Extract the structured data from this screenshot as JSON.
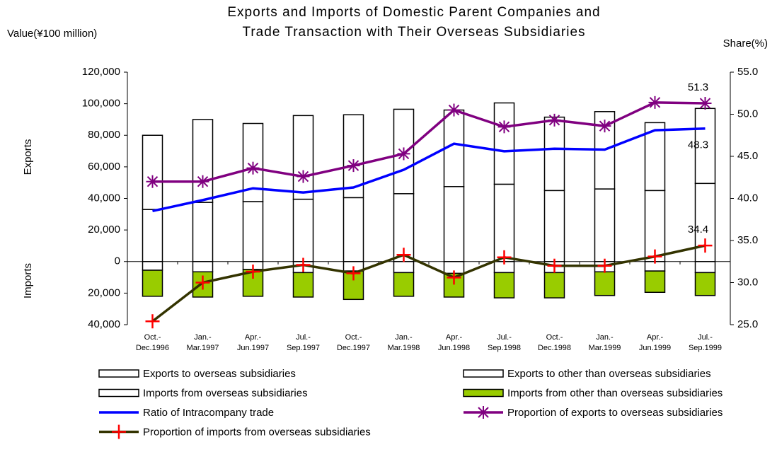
{
  "chart_data": {
    "type": "combo",
    "title": [
      "Exports and Imports of Domestic Parent Companies and",
      "Trade Transaction with Their Overseas Subsidiaries"
    ],
    "y_axis_label": "Value(¥100 million)",
    "y2_axis_label": "Share(%)",
    "y_axis_upper_label": "Exports",
    "y_axis_lower_label": "Imports",
    "categories": [
      [
        "Oct.-",
        "Dec.1996"
      ],
      [
        "Jan.-",
        "Mar.1997"
      ],
      [
        "Apr.-",
        "Jun.1997"
      ],
      [
        "Jul.-",
        "Sep.1997"
      ],
      [
        "Oct.-",
        "Dec.1997"
      ],
      [
        "Jan.-",
        "Mar.1998"
      ],
      [
        "Apr.-",
        "Jun.1998"
      ],
      [
        "Jul.-",
        "Sep.1998"
      ],
      [
        "Oct.-",
        "Dec.1998"
      ],
      [
        "Jan.-",
        "Mar.1999"
      ],
      [
        "Apr.-",
        "Jun.1999"
      ],
      [
        "Jul.-",
        "Sep.1999"
      ]
    ],
    "ylim": [
      -40000,
      120000
    ],
    "yticks": [
      {
        "value": -40000,
        "label": "40,000"
      },
      {
        "value": -20000,
        "label": "20,000"
      },
      0,
      {
        "value": 20000,
        "label": "20,000"
      },
      {
        "value": 40000,
        "label": "40,000"
      },
      {
        "value": 60000,
        "label": "60,000"
      },
      {
        "value": 80000,
        "label": "80,000"
      },
      {
        "value": 100000,
        "label": "100,000"
      },
      {
        "value": 120000,
        "label": "120,000"
      }
    ],
    "y2lim": [
      25,
      55
    ],
    "y2ticks": [
      {
        "value": 25,
        "label": "25.0"
      },
      {
        "value": 30,
        "label": "30.0"
      },
      {
        "value": 35,
        "label": "35.0"
      },
      {
        "value": 40,
        "label": "40.0"
      },
      {
        "value": 45,
        "label": "45.0"
      },
      {
        "value": 50,
        "label": "50.0"
      },
      {
        "value": 55,
        "label": "55.0"
      }
    ],
    "legend": "bottom",
    "data_labels": "last",
    "series": [
      {
        "name": "Exports to overseas subsidiaries",
        "type": "bar",
        "color": "#ffffff",
        "values": [
          33000,
          37500,
          38000,
          39500,
          40500,
          43000,
          47500,
          49000,
          45000,
          46000,
          45000,
          49500
        ]
      },
      {
        "name": "Exports to other than overseas subsidiaries",
        "type": "bar",
        "color": "#ffffff",
        "values": [
          47000,
          52500,
          49500,
          53000,
          52500,
          53500,
          48500,
          51500,
          46500,
          49000,
          43000,
          47500
        ]
      },
      {
        "name": "Imports from overseas subsidiaries",
        "type": "bar",
        "color": "#ffffff",
        "values": [
          -5500,
          -6500,
          -5000,
          -7000,
          -6000,
          -7000,
          -7500,
          -7000,
          -7000,
          -6500,
          -6000,
          -7000
        ]
      },
      {
        "name": "Imports from other than overseas subsidiaries",
        "type": "bar",
        "color": "#99cc00",
        "values": [
          -16500,
          -16000,
          -17000,
          -15500,
          -18000,
          -15000,
          -15000,
          -16000,
          -16000,
          -15000,
          -13500,
          -14500
        ]
      },
      {
        "name": "Ratio of Intracompany trade",
        "type": "line",
        "axis": "y2",
        "color": "#0000ff",
        "values": [
          38.5,
          39.8,
          41.2,
          40.7,
          41.3,
          43.4,
          46.5,
          45.6,
          45.9,
          45.8,
          48.1,
          48.3
        ]
      },
      {
        "name": "Proportion of exports to overseas subsidiaries",
        "type": "line",
        "axis": "y2",
        "color": "#800080",
        "marker": "asterisk",
        "values": [
          42.0,
          42.0,
          43.6,
          42.6,
          43.9,
          45.3,
          50.5,
          48.5,
          49.3,
          48.6,
          51.4,
          51.3
        ]
      },
      {
        "name": "Proportion of imports from overseas subsidiaries",
        "type": "line",
        "axis": "y2",
        "color": "#333300",
        "marker": "plus",
        "marker_color": "#ff0000",
        "values": [
          25.4,
          30.0,
          31.3,
          32.1,
          31.1,
          33.3,
          30.6,
          33.0,
          32.0,
          32.0,
          33.1,
          34.4
        ]
      }
    ]
  }
}
